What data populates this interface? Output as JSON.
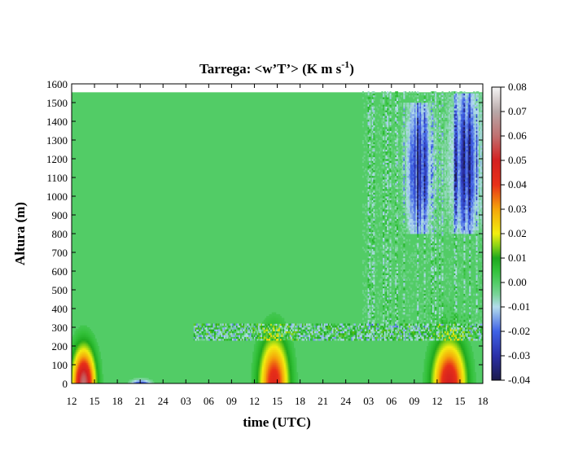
{
  "chart_data": {
    "type": "heatmap",
    "title": "Tarrega: <w’T’> (K m s",
    "title_sup": "-1",
    "title_end": ")",
    "xlabel": "time (UTC)",
    "ylabel": "Altura (m)",
    "x_ticks": [
      "12",
      "15",
      "18",
      "21",
      "24",
      "03",
      "06",
      "09",
      "12",
      "15",
      "18",
      "21",
      "24",
      "03",
      "06",
      "09",
      "12",
      "15",
      "18"
    ],
    "x_range_hours": [
      0,
      54
    ],
    "y_ticks": [
      0,
      100,
      200,
      300,
      400,
      500,
      600,
      700,
      800,
      900,
      1000,
      1100,
      1200,
      1300,
      1400,
      1500,
      1600
    ],
    "ylim": [
      0,
      1600
    ],
    "data_top_m": 1555,
    "colorbar": {
      "ticks": [
        "0.08",
        "0.07",
        "0.06",
        "0.05",
        "0.04",
        "0.03",
        "0.02",
        "0.01",
        "0.00",
        "-0.01",
        "-0.02",
        "-0.03",
        "-0.04"
      ],
      "range": [
        -0.04,
        0.08
      ],
      "stops": [
        {
          "v": -0.04,
          "c": "#1b1a4c"
        },
        {
          "v": -0.03,
          "c": "#2a2fa8"
        },
        {
          "v": -0.02,
          "c": "#3f62e6"
        },
        {
          "v": -0.01,
          "c": "#b3dcec"
        },
        {
          "v": -0.005,
          "c": "#7ad49a"
        },
        {
          "v": 0.0,
          "c": "#52cc66"
        },
        {
          "v": 0.005,
          "c": "#33c13a"
        },
        {
          "v": 0.01,
          "c": "#1ea81e"
        },
        {
          "v": 0.015,
          "c": "#8bd316"
        },
        {
          "v": 0.02,
          "c": "#f2ee10"
        },
        {
          "v": 0.03,
          "c": "#f5a50a"
        },
        {
          "v": 0.04,
          "c": "#e83018"
        },
        {
          "v": 0.05,
          "c": "#d42020"
        },
        {
          "v": 0.06,
          "c": "#c07070"
        },
        {
          "v": 0.07,
          "c": "#b8a8a8"
        },
        {
          "v": 0.08,
          "c": "#f5f5f5"
        }
      ]
    },
    "features": [
      {
        "t": 1.5,
        "dt": 1.4,
        "z": 0,
        "dz": 220,
        "v": 0.06,
        "note": "daytime convective maximum day 1"
      },
      {
        "t": 9.0,
        "dt": 1.2,
        "z": 0,
        "dz": 25,
        "v": -0.025
      },
      {
        "t": 26.5,
        "dt": 1.8,
        "z": 0,
        "dz": 280,
        "v": 0.045,
        "note": "daytime convective maximum day 2"
      },
      {
        "t": 49.5,
        "dt": 2.0,
        "z": 0,
        "dz": 260,
        "v": 0.05,
        "note": "daytime convective maximum day 3"
      },
      {
        "t": 45.5,
        "dt": 1.5,
        "z": 800,
        "dz": 700,
        "v": -0.035
      },
      {
        "t": 51.5,
        "dt": 2.0,
        "z": 800,
        "dz": 750,
        "v": -0.035
      }
    ],
    "grid": false,
    "legend": "colorbar-right"
  }
}
